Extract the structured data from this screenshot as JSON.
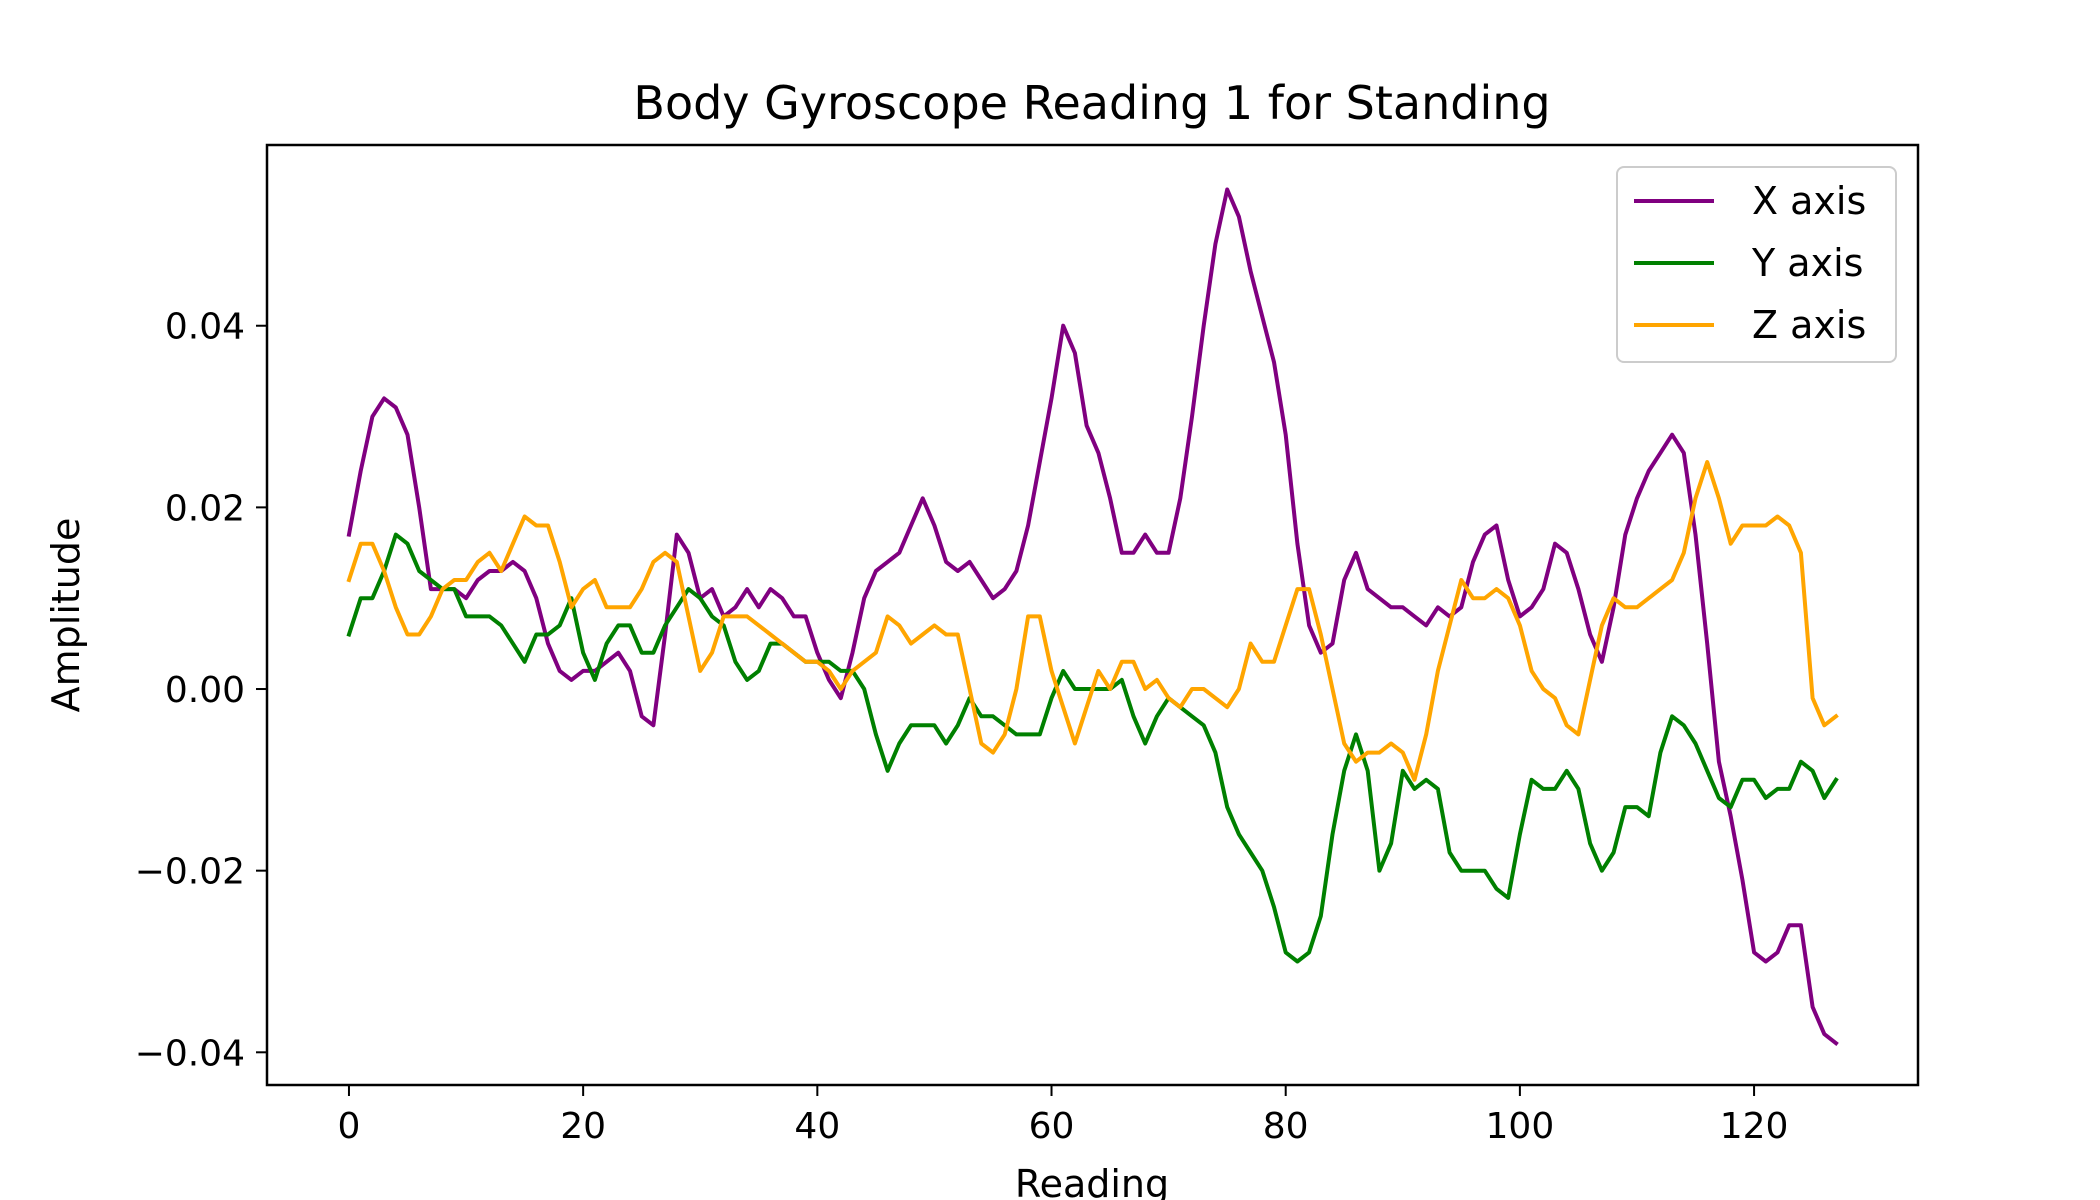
{
  "chart_data": {
    "type": "line",
    "title": "Body Gyroscope Reading 1 for Standing",
    "xlabel": "Reading",
    "ylabel": "Amplitude",
    "xlim": [
      -7,
      134
    ],
    "ylim": [
      -0.0436,
      0.0599
    ],
    "xticks": [
      0,
      20,
      40,
      60,
      80,
      100,
      120
    ],
    "xtick_labels": [
      "0",
      "20",
      "40",
      "60",
      "80",
      "100",
      "120"
    ],
    "yticks": [
      -0.04,
      -0.02,
      0.0,
      0.02,
      0.04
    ],
    "ytick_labels": [
      "−0.04",
      "−0.02",
      "0.00",
      "0.02",
      "0.04"
    ],
    "grid": false,
    "legend_position": "top-right",
    "series": [
      {
        "name": "X axis",
        "color": "#800080",
        "values": [
          0.017,
          0.024,
          0.03,
          0.032,
          0.031,
          0.028,
          0.02,
          0.011,
          0.011,
          0.011,
          0.01,
          0.012,
          0.013,
          0.013,
          0.014,
          0.013,
          0.01,
          0.005,
          0.002,
          0.001,
          0.002,
          0.002,
          0.003,
          0.004,
          0.002,
          -0.003,
          -0.004,
          0.006,
          0.017,
          0.015,
          0.01,
          0.011,
          0.008,
          0.009,
          0.011,
          0.009,
          0.011,
          0.01,
          0.008,
          0.008,
          0.004,
          0.001,
          -0.001,
          0.004,
          0.01,
          0.013,
          0.014,
          0.015,
          0.018,
          0.021,
          0.018,
          0.014,
          0.013,
          0.014,
          0.012,
          0.01,
          0.011,
          0.013,
          0.018,
          0.025,
          0.032,
          0.04,
          0.037,
          0.029,
          0.026,
          0.021,
          0.015,
          0.015,
          0.017,
          0.015,
          0.015,
          0.021,
          0.03,
          0.04,
          0.049,
          0.055,
          0.052,
          0.046,
          0.041,
          0.036,
          0.028,
          0.016,
          0.007,
          0.004,
          0.005,
          0.012,
          0.015,
          0.011,
          0.01,
          0.009,
          0.009,
          0.008,
          0.007,
          0.009,
          0.008,
          0.009,
          0.014,
          0.017,
          0.018,
          0.012,
          0.008,
          0.009,
          0.011,
          0.016,
          0.015,
          0.011,
          0.006,
          0.003,
          0.009,
          0.017,
          0.021,
          0.024,
          0.026,
          0.028,
          0.026,
          0.017,
          0.005,
          -0.008,
          -0.014,
          -0.021,
          -0.029,
          -0.03,
          -0.029,
          -0.026,
          -0.026,
          -0.035,
          -0.038,
          -0.039
        ]
      },
      {
        "name": "Y axis",
        "color": "#008000",
        "values": [
          0.006,
          0.01,
          0.01,
          0.013,
          0.017,
          0.016,
          0.013,
          0.012,
          0.011,
          0.011,
          0.008,
          0.008,
          0.008,
          0.007,
          0.005,
          0.003,
          0.006,
          0.006,
          0.007,
          0.01,
          0.004,
          0.001,
          0.005,
          0.007,
          0.007,
          0.004,
          0.004,
          0.007,
          0.009,
          0.011,
          0.01,
          0.008,
          0.007,
          0.003,
          0.001,
          0.002,
          0.005,
          0.005,
          0.004,
          0.003,
          0.003,
          0.003,
          0.002,
          0.002,
          0.0,
          -0.005,
          -0.009,
          -0.006,
          -0.004,
          -0.004,
          -0.004,
          -0.006,
          -0.004,
          -0.001,
          -0.003,
          -0.003,
          -0.004,
          -0.005,
          -0.005,
          -0.005,
          -0.001,
          0.002,
          0.0,
          0.0,
          0.0,
          0.0,
          0.001,
          -0.003,
          -0.006,
          -0.003,
          -0.001,
          -0.002,
          -0.003,
          -0.004,
          -0.007,
          -0.013,
          -0.016,
          -0.018,
          -0.02,
          -0.024,
          -0.029,
          -0.03,
          -0.029,
          -0.025,
          -0.016,
          -0.009,
          -0.005,
          -0.009,
          -0.02,
          -0.017,
          -0.009,
          -0.011,
          -0.01,
          -0.011,
          -0.018,
          -0.02,
          -0.02,
          -0.02,
          -0.022,
          -0.023,
          -0.016,
          -0.01,
          -0.011,
          -0.011,
          -0.009,
          -0.011,
          -0.017,
          -0.02,
          -0.018,
          -0.013,
          -0.013,
          -0.014,
          -0.007,
          -0.003,
          -0.004,
          -0.006,
          -0.009,
          -0.012,
          -0.013,
          -0.01,
          -0.01,
          -0.012,
          -0.011,
          -0.011,
          -0.008,
          -0.009,
          -0.012,
          -0.01
        ]
      },
      {
        "name": "Z axis",
        "color": "#FFA500",
        "values": [
          0.012,
          0.016,
          0.016,
          0.013,
          0.009,
          0.006,
          0.006,
          0.008,
          0.011,
          0.012,
          0.012,
          0.014,
          0.015,
          0.013,
          0.016,
          0.019,
          0.018,
          0.018,
          0.014,
          0.009,
          0.011,
          0.012,
          0.009,
          0.009,
          0.009,
          0.011,
          0.014,
          0.015,
          0.014,
          0.008,
          0.002,
          0.004,
          0.008,
          0.008,
          0.008,
          0.007,
          0.006,
          0.005,
          0.004,
          0.003,
          0.003,
          0.002,
          0.0,
          0.002,
          0.003,
          0.004,
          0.008,
          0.007,
          0.005,
          0.006,
          0.007,
          0.006,
          0.006,
          0.0,
          -0.006,
          -0.007,
          -0.005,
          0.0,
          0.008,
          0.008,
          0.002,
          -0.002,
          -0.006,
          -0.002,
          0.002,
          0.0,
          0.003,
          0.003,
          0.0,
          0.001,
          -0.001,
          -0.002,
          0.0,
          0.0,
          -0.001,
          -0.002,
          0.0,
          0.005,
          0.003,
          0.003,
          0.007,
          0.011,
          0.011,
          0.006,
          0.0,
          -0.006,
          -0.008,
          -0.007,
          -0.007,
          -0.006,
          -0.007,
          -0.01,
          -0.005,
          0.002,
          0.007,
          0.012,
          0.01,
          0.01,
          0.011,
          0.01,
          0.007,
          0.002,
          0.0,
          -0.001,
          -0.004,
          -0.005,
          0.001,
          0.007,
          0.01,
          0.009,
          0.009,
          0.01,
          0.011,
          0.012,
          0.015,
          0.021,
          0.025,
          0.021,
          0.016,
          0.018,
          0.018,
          0.018,
          0.019,
          0.018,
          0.015,
          -0.001,
          -0.004,
          -0.003
        ]
      }
    ]
  }
}
